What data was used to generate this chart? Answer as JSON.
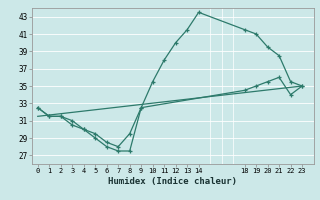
{
  "xlabel": "Humidex (Indice chaleur)",
  "ylabel": "",
  "bg_color": "#cce8e8",
  "grid_color": "#ffffff",
  "line_color": "#2d7a6b",
  "ylim": [
    26,
    44
  ],
  "yticks": [
    27,
    29,
    31,
    33,
    35,
    37,
    39,
    41,
    43
  ],
  "xticks": [
    0,
    1,
    2,
    3,
    4,
    5,
    6,
    7,
    8,
    9,
    10,
    11,
    12,
    13,
    14,
    18,
    19,
    20,
    21,
    22,
    23
  ],
  "xlim": [
    -0.5,
    24.0
  ],
  "line1_x": [
    0,
    1,
    2,
    3,
    4,
    5,
    6,
    7,
    8,
    9,
    10,
    11,
    12,
    13,
    14,
    18,
    19,
    20,
    21,
    22,
    23
  ],
  "line1_y": [
    32.5,
    31.5,
    31.5,
    30.5,
    30.0,
    29.0,
    28.0,
    27.5,
    27.5,
    32.5,
    35.5,
    38.0,
    40.0,
    41.5,
    43.5,
    41.5,
    41.0,
    39.5,
    38.5,
    35.5,
    35.0
  ],
  "line2_x": [
    0,
    1,
    2,
    3,
    4,
    5,
    6,
    7,
    8,
    9,
    18,
    19,
    20,
    21,
    22,
    23
  ],
  "line2_y": [
    32.5,
    31.5,
    31.5,
    31.0,
    30.0,
    29.5,
    28.5,
    28.0,
    29.5,
    32.5,
    34.5,
    35.0,
    35.5,
    36.0,
    34.0,
    35.0
  ],
  "line3_x": [
    0,
    23
  ],
  "line3_y": [
    31.5,
    35.0
  ]
}
